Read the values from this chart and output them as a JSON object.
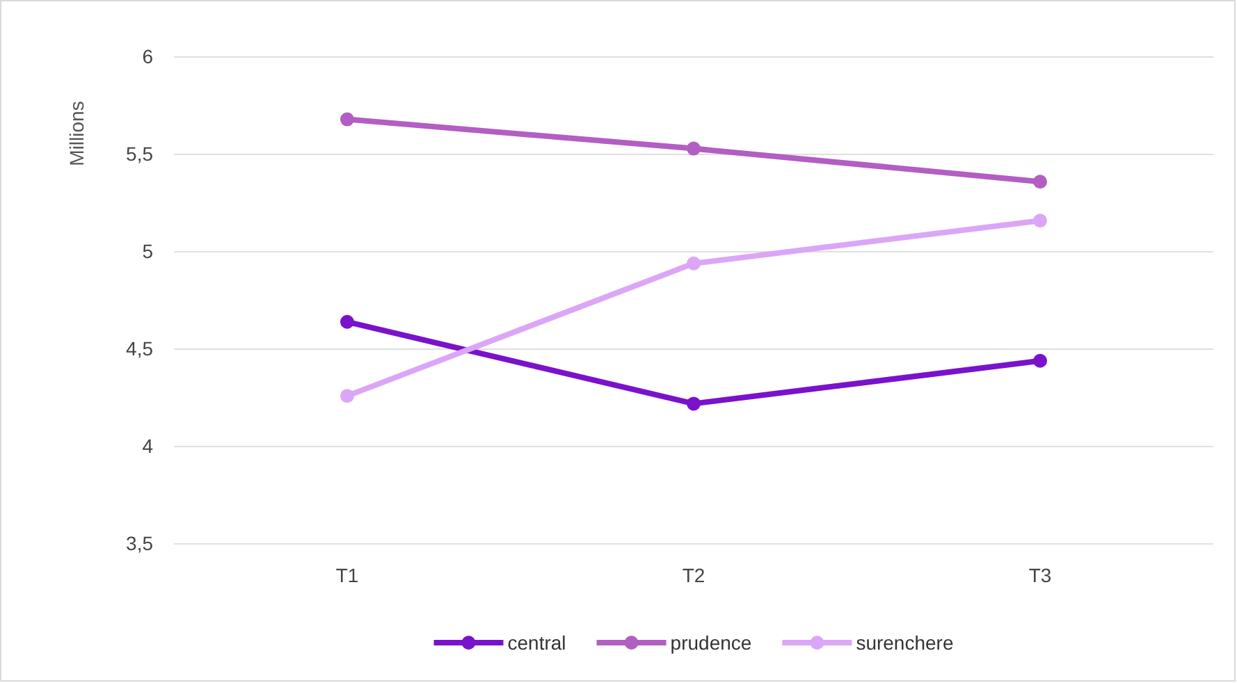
{
  "chart_data": {
    "type": "line",
    "ylabel": "Millions",
    "categories": [
      "T1",
      "T2",
      "T3"
    ],
    "series": [
      {
        "name": "central",
        "color": "#7a12cc",
        "values": [
          4.64,
          4.22,
          4.44
        ]
      },
      {
        "name": "prudence",
        "color": "#b25ec2",
        "values": [
          5.68,
          5.53,
          5.36
        ]
      },
      {
        "name": "surenchere",
        "color": "#dba6f7",
        "values": [
          4.26,
          4.94,
          5.16
        ]
      }
    ],
    "ylim": [
      3.5,
      6
    ],
    "yticks": [
      {
        "value": 3.5,
        "label": "3,5"
      },
      {
        "value": 4,
        "label": "4"
      },
      {
        "value": 4.5,
        "label": "4,5"
      },
      {
        "value": 5,
        "label": "5"
      },
      {
        "value": 5.5,
        "label": "5,5"
      },
      {
        "value": 6,
        "label": "6"
      }
    ],
    "grid": "y",
    "legend": "bottom",
    "marker": "circle",
    "line_style": "solid"
  }
}
